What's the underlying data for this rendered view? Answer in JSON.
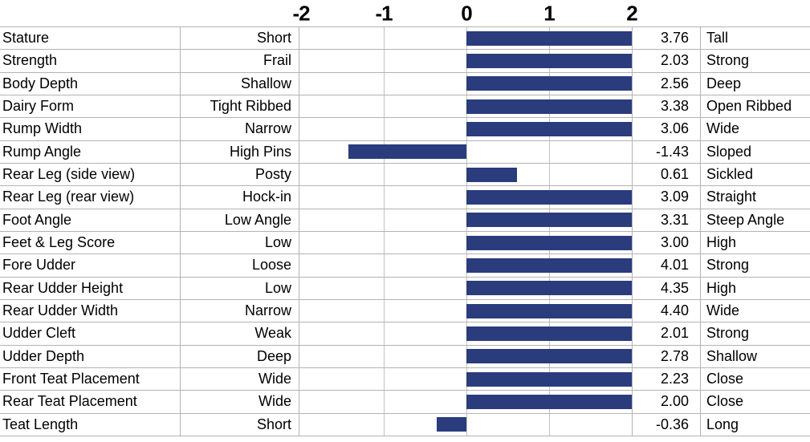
{
  "chart_data": {
    "type": "bar",
    "orientation": "horizontal",
    "description": "Linear type trait STA chart",
    "axis": {
      "ticks": [
        "-2",
        "-1",
        "0",
        "1",
        "2"
      ],
      "min": -2,
      "max": 2,
      "bar_clamp": 2,
      "grid": true
    },
    "rows": [
      {
        "trait": "Stature",
        "low": "Short",
        "value": 3.76,
        "high": "Tall"
      },
      {
        "trait": "Strength",
        "low": "Frail",
        "value": 2.03,
        "high": "Strong"
      },
      {
        "trait": "Body Depth",
        "low": "Shallow",
        "value": 2.56,
        "high": "Deep"
      },
      {
        "trait": "Dairy Form",
        "low": "Tight Ribbed",
        "value": 3.38,
        "high": "Open Ribbed"
      },
      {
        "trait": "Rump Width",
        "low": "Narrow",
        "value": 3.06,
        "high": "Wide"
      },
      {
        "trait": "Rump Angle",
        "low": "High Pins",
        "value": -1.43,
        "high": "Sloped"
      },
      {
        "trait": "Rear Leg (side view)",
        "low": "Posty",
        "value": 0.61,
        "high": "Sickled"
      },
      {
        "trait": "Rear Leg (rear view)",
        "low": "Hock-in",
        "value": 3.09,
        "high": "Straight"
      },
      {
        "trait": "Foot Angle",
        "low": "Low Angle",
        "value": 3.31,
        "high": "Steep Angle"
      },
      {
        "trait": "Feet & Leg Score",
        "low": "Low",
        "value": 3.0,
        "high": "High"
      },
      {
        "trait": "Fore Udder",
        "low": "Loose",
        "value": 4.01,
        "high": "Strong"
      },
      {
        "trait": "Rear Udder Height",
        "low": "Low",
        "value": 4.35,
        "high": "High"
      },
      {
        "trait": "Rear Udder Width",
        "low": "Narrow",
        "value": 4.4,
        "high": "Wide"
      },
      {
        "trait": "Udder Cleft",
        "low": "Weak",
        "value": 2.01,
        "high": "Strong"
      },
      {
        "trait": "Udder Depth",
        "low": "Deep",
        "value": 2.78,
        "high": "Shallow"
      },
      {
        "trait": "Front Teat Placement",
        "low": "Wide",
        "value": 2.23,
        "high": "Close"
      },
      {
        "trait": "Rear Teat Placement",
        "low": "Wide",
        "value": 2.0,
        "high": "Close"
      },
      {
        "trait": "Teat Length",
        "low": "Short",
        "value": -0.36,
        "high": "Long"
      }
    ],
    "colors": {
      "bar": "#2b3c7d",
      "grid": "#c2c2c2",
      "border": "#b3b3b3",
      "text": "#000000",
      "background": "#ffffff"
    }
  }
}
